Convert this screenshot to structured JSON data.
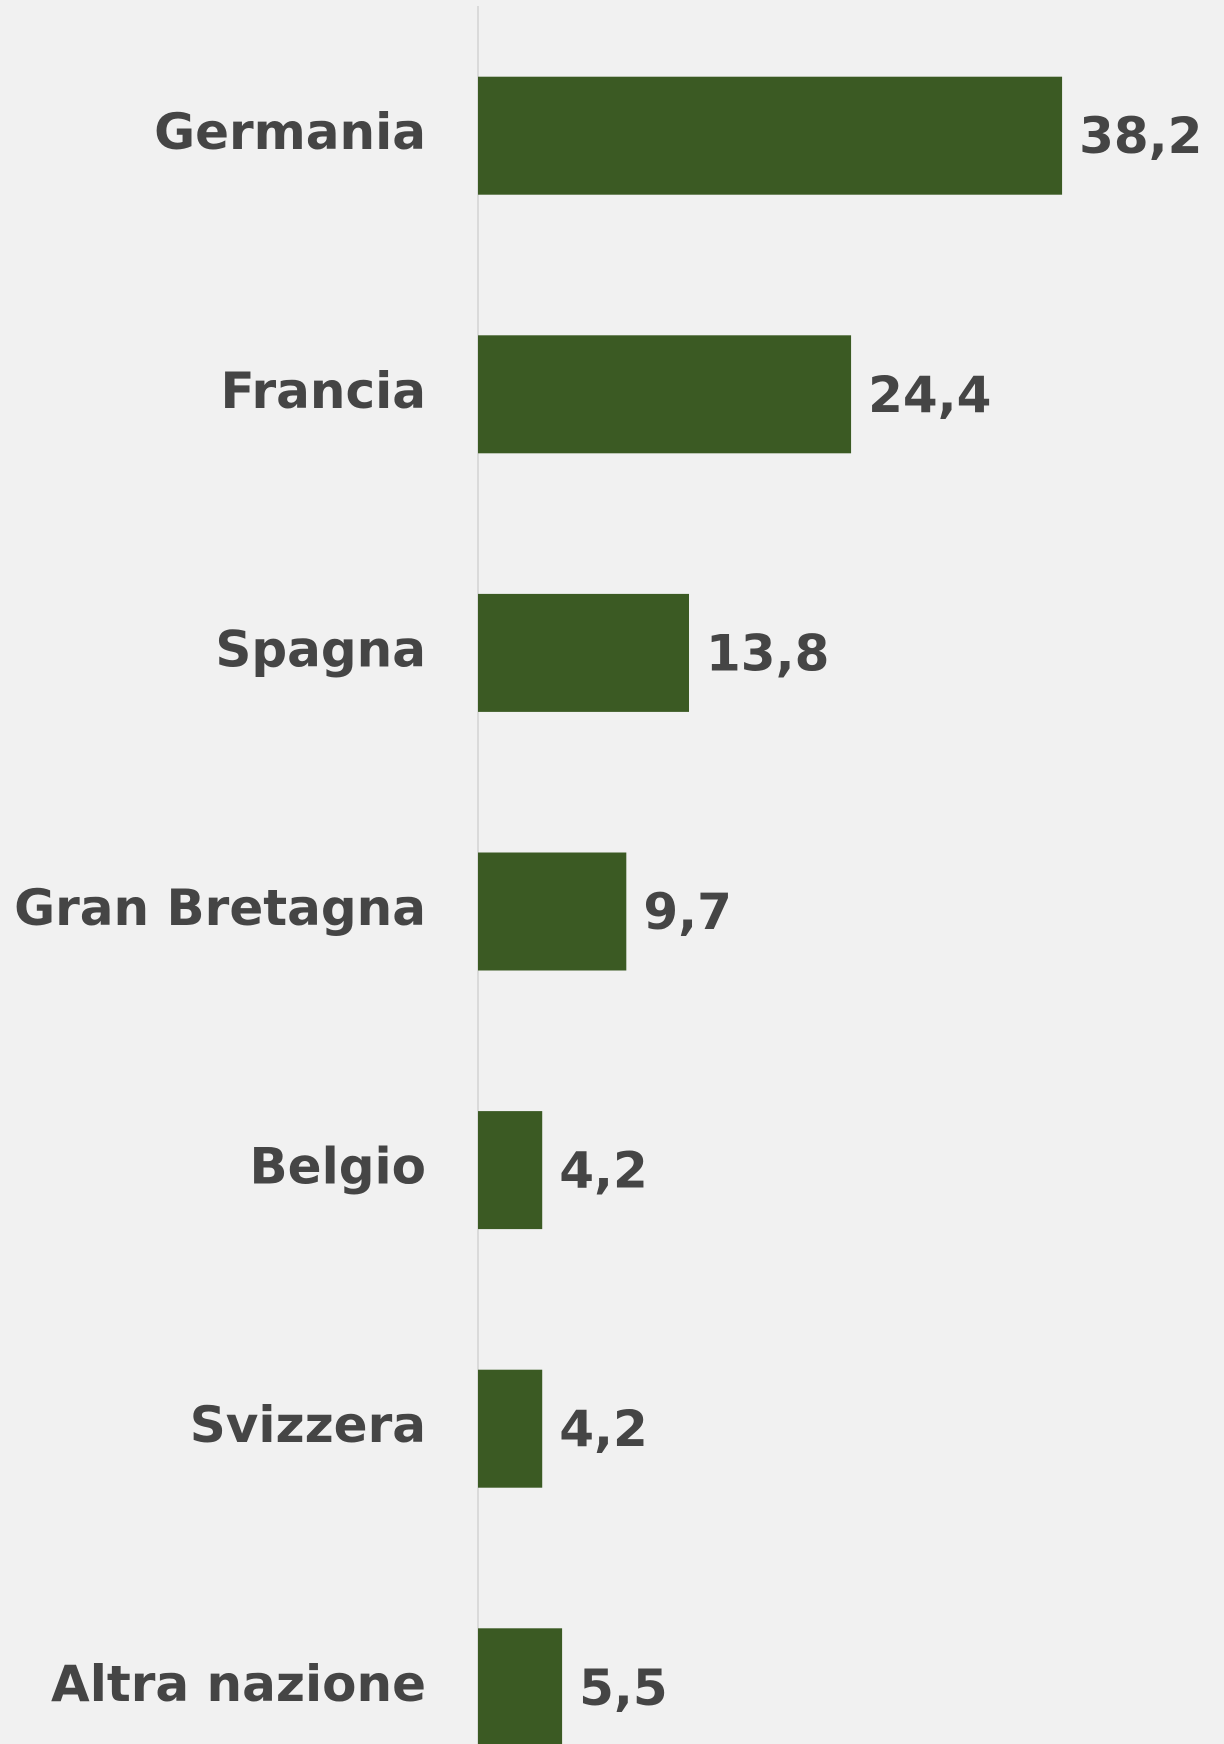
{
  "chart_data": {
    "type": "bar",
    "orientation": "horizontal",
    "categories": [
      "Germania",
      "Francia",
      "Spagna",
      "Gran Bretagna",
      "Belgio",
      "Svizzera",
      "Altra nazione"
    ],
    "values": [
      38.2,
      24.4,
      13.8,
      9.7,
      4.2,
      4.2,
      5.5
    ],
    "value_labels": [
      "38,2",
      "24,4",
      "13,8",
      "9,7",
      "4,2",
      "4,2",
      "5,5"
    ],
    "color": "#3b5a23",
    "xlim": [
      0,
      40
    ]
  }
}
